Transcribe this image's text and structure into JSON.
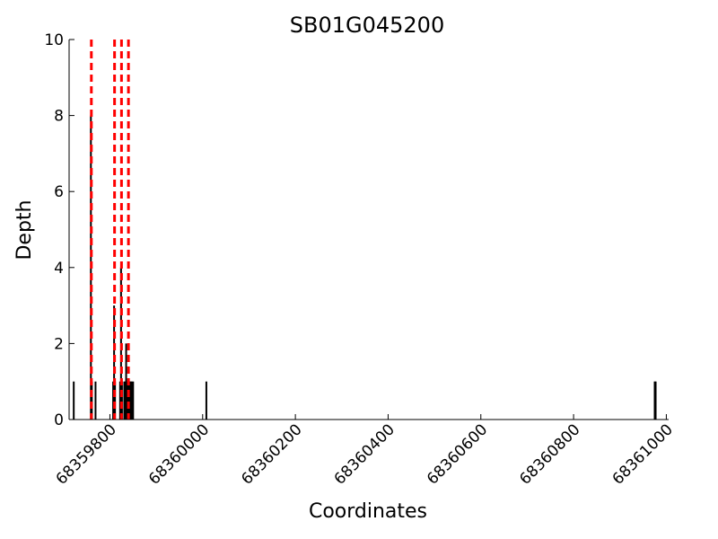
{
  "chart_data": {
    "type": "bar",
    "title": "SB01G045200",
    "xlabel": "Coordinates",
    "ylabel": "Depth",
    "xlim": [
      68359712,
      68361005
    ],
    "ylim": [
      0,
      10
    ],
    "x_ticks": [
      68359800,
      68360000,
      68360200,
      68360400,
      68360600,
      68360800,
      68361000
    ],
    "y_ticks": [
      0,
      2,
      4,
      6,
      8,
      10
    ],
    "grid": false,
    "bars": [
      {
        "x": 68359722,
        "y": 1
      },
      {
        "x": 68359759,
        "y": 8
      },
      {
        "x": 68359761,
        "y": 1
      },
      {
        "x": 68359769,
        "y": 1
      },
      {
        "x": 68359807,
        "y": 1
      },
      {
        "x": 68359809,
        "y": 3
      },
      {
        "x": 68359811,
        "y": 1
      },
      {
        "x": 68359822,
        "y": 1
      },
      {
        "x": 68359824,
        "y": 4
      },
      {
        "x": 68359826,
        "y": 1
      },
      {
        "x": 68359831,
        "y": 1
      },
      {
        "x": 68359833,
        "y": 1
      },
      {
        "x": 68359835,
        "y": 2
      },
      {
        "x": 68359837,
        "y": 1
      },
      {
        "x": 68359839,
        "y": 1
      },
      {
        "x": 68359841,
        "y": 1
      },
      {
        "x": 68359843,
        "y": 1
      },
      {
        "x": 68359845,
        "y": 1
      },
      {
        "x": 68359847,
        "y": 1
      },
      {
        "x": 68359850,
        "y": 1
      },
      {
        "x": 68360008,
        "y": 1
      },
      {
        "x": 68360975,
        "y": 1
      },
      {
        "x": 68360977,
        "y": 1
      }
    ],
    "marker_lines": [
      68359760,
      68359810,
      68359825,
      68359840
    ],
    "marker_color": "#ff0000",
    "bar_color": "#000000"
  }
}
